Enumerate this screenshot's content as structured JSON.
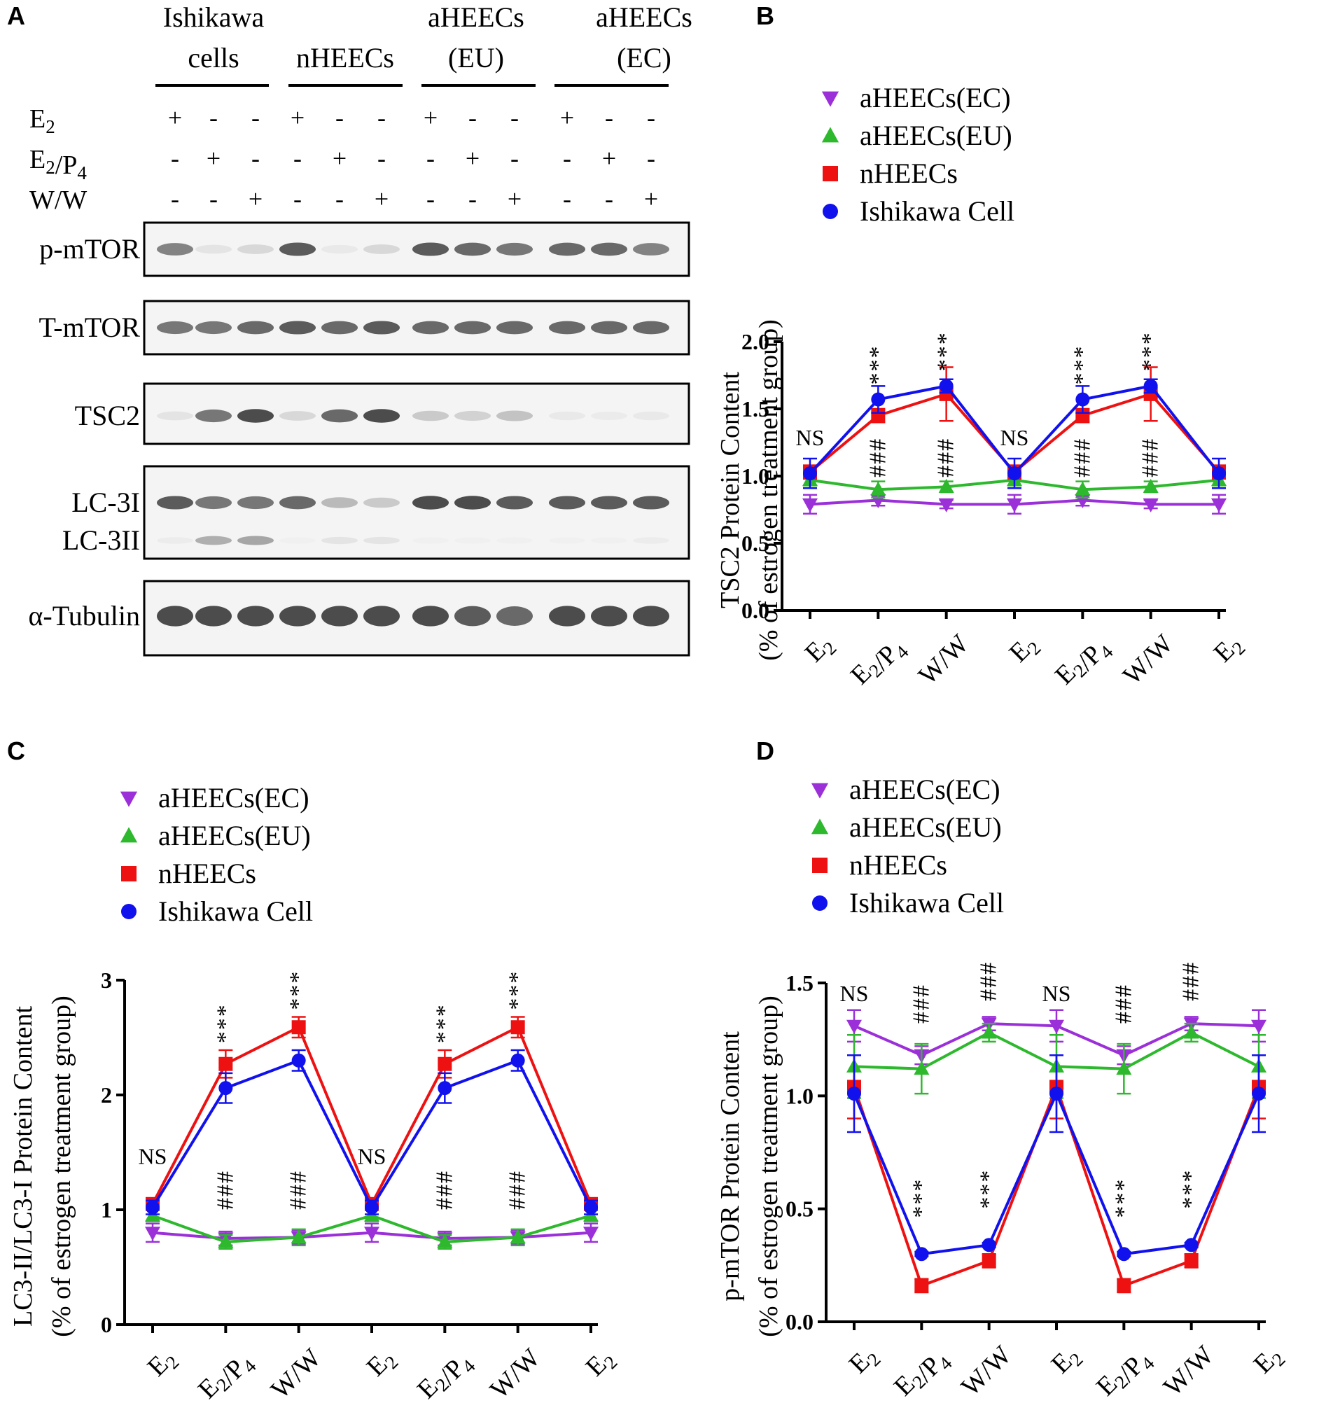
{
  "panels": {
    "a": "A",
    "b": "B",
    "c": "C",
    "d": "D"
  },
  "blot": {
    "groups": [
      {
        "line1": "Ishikawa",
        "line2": "cells"
      },
      {
        "line1": "",
        "line2": "nHEECs"
      },
      {
        "line1": "aHEECs",
        "line2": "(EU)"
      },
      {
        "line1": "aHEECs",
        "line2": "(EC)"
      }
    ],
    "treatments": [
      {
        "label": "E2",
        "signs": [
          "+",
          "-",
          "-",
          "+",
          "-",
          "-",
          "+",
          "-",
          "-",
          "+",
          "-",
          "-"
        ]
      },
      {
        "label": "E2/P4",
        "signs": [
          "-",
          "+",
          "-",
          "-",
          "+",
          "-",
          "-",
          "+",
          "-",
          "-",
          "+",
          "-"
        ]
      },
      {
        "label": "W/W",
        "signs": [
          "-",
          "-",
          "+",
          "-",
          "-",
          "+",
          "-",
          "-",
          "+",
          "-",
          "-",
          "+"
        ]
      }
    ],
    "rows": [
      {
        "label": "p-mTOR",
        "intensity": [
          0.75,
          0.2,
          0.3,
          0.9,
          0.15,
          0.3,
          0.9,
          0.85,
          0.8,
          0.85,
          0.85,
          0.75
        ]
      },
      {
        "label": "T-mTOR",
        "intensity": [
          0.8,
          0.8,
          0.85,
          0.9,
          0.85,
          0.9,
          0.85,
          0.85,
          0.85,
          0.85,
          0.85,
          0.85
        ]
      },
      {
        "label": "TSC2",
        "intensity": [
          0.2,
          0.8,
          0.95,
          0.3,
          0.85,
          0.95,
          0.4,
          0.35,
          0.45,
          0.15,
          0.12,
          0.15
        ]
      },
      {
        "label": "LC-3I",
        "intensity": [
          0.9,
          0.8,
          0.8,
          0.85,
          0.5,
          0.4,
          0.95,
          0.95,
          0.9,
          0.9,
          0.9,
          0.9
        ]
      },
      {
        "label": "LC-3II",
        "intensity": [
          0.1,
          0.55,
          0.6,
          0.05,
          0.2,
          0.2,
          0.05,
          0.05,
          0.05,
          0.05,
          0.05,
          0.1
        ]
      },
      {
        "label": "α-Tubulin",
        "intensity": [
          0.95,
          0.95,
          0.95,
          0.95,
          0.95,
          0.95,
          0.95,
          0.9,
          0.85,
          0.95,
          0.95,
          0.95
        ]
      }
    ]
  },
  "chart_data": [
    {
      "id": "B",
      "type": "line",
      "categories": [
        "E2",
        "E2/P4",
        "W/W",
        "E2",
        "E2/P4",
        "W/W",
        "E2"
      ],
      "ylabel_line1": "TSC2 Protein Content",
      "ylabel_line2": "(% of estrogen treatment  group)",
      "ylim": [
        0,
        2.0
      ],
      "yticks": [
        0.0,
        0.5,
        1.0,
        1.5,
        2.0
      ],
      "ytick_labels": [
        "0.0",
        "0.5",
        "1.0",
        "1.5",
        "2.0"
      ],
      "legend": [
        "aHEECs(EC)",
        "aHEECs(EU)",
        "nHEECs",
        "Ishikawa Cell"
      ],
      "series": [
        {
          "name": "aHEECs(EC)",
          "color": "#9b30d9",
          "marker": "triangle-down",
          "values": [
            0.79,
            0.82,
            0.79,
            0.79,
            0.82,
            0.79,
            0.79
          ],
          "errors": [
            0.07,
            0.04,
            0.03,
            0.07,
            0.04,
            0.03,
            0.07
          ]
        },
        {
          "name": "aHEECs(EU)",
          "color": "#2db82d",
          "marker": "triangle-up",
          "values": [
            0.97,
            0.9,
            0.92,
            0.97,
            0.9,
            0.92,
            0.97
          ],
          "errors": [
            0.04,
            0.06,
            0.04,
            0.04,
            0.06,
            0.04,
            0.04
          ]
        },
        {
          "name": "nHEECs",
          "color": "#ee1111",
          "marker": "square",
          "values": [
            1.03,
            1.45,
            1.61,
            1.03,
            1.45,
            1.61,
            1.03
          ],
          "errors": [
            0.05,
            0.05,
            0.2,
            0.05,
            0.05,
            0.2,
            0.05
          ]
        },
        {
          "name": "Ishikawa Cell",
          "color": "#1111ee",
          "marker": "circle",
          "values": [
            1.02,
            1.57,
            1.67,
            1.02,
            1.57,
            1.67,
            1.02
          ],
          "errors": [
            0.11,
            0.1,
            0.05,
            0.11,
            0.1,
            0.05,
            0.11
          ]
        }
      ],
      "annotations": [
        {
          "text": "NS",
          "x": 0,
          "y": 1.23
        },
        {
          "text": "***",
          "x": 1,
          "y": 1.68,
          "vertical": true
        },
        {
          "text": "***",
          "x": 2,
          "y": 1.78,
          "vertical": true
        },
        {
          "text": "NS",
          "x": 3,
          "y": 1.23
        },
        {
          "text": "***",
          "x": 4,
          "y": 1.68,
          "vertical": true
        },
        {
          "text": "***",
          "x": 5,
          "y": 1.78,
          "vertical": true
        },
        {
          "text": "###",
          "x": 1,
          "y": 0.99,
          "vertical": true
        },
        {
          "text": "###",
          "x": 2,
          "y": 0.99,
          "vertical": true
        },
        {
          "text": "###",
          "x": 4,
          "y": 0.99,
          "vertical": true
        },
        {
          "text": "###",
          "x": 5,
          "y": 0.99,
          "vertical": true
        }
      ]
    },
    {
      "id": "C",
      "type": "line",
      "categories": [
        "E2",
        "E2/P4",
        "W/W",
        "E2",
        "E2/P4",
        "W/W",
        "E2"
      ],
      "ylabel_line1": "LC3-II/LC3-I Protein Content",
      "ylabel_line2": "(% of estrogen treatment  group)",
      "ylim": [
        0,
        3
      ],
      "yticks": [
        0,
        1,
        2,
        3
      ],
      "ytick_labels": [
        "0",
        "1",
        "2",
        "3"
      ],
      "legend": [
        "aHEECs(EC)",
        "aHEECs(EU)",
        "nHEECs",
        "Ishikawa Cell"
      ],
      "series": [
        {
          "name": "aHEECs(EC)",
          "color": "#9b30d9",
          "marker": "triangle-down",
          "values": [
            0.8,
            0.75,
            0.76,
            0.8,
            0.75,
            0.76,
            0.8
          ],
          "errors": [
            0.08,
            0.06,
            0.06,
            0.08,
            0.06,
            0.06,
            0.08
          ]
        },
        {
          "name": "aHEECs(EU)",
          "color": "#2db82d",
          "marker": "triangle-up",
          "values": [
            0.95,
            0.72,
            0.76,
            0.95,
            0.72,
            0.76,
            0.95
          ],
          "errors": [
            0.05,
            0.06,
            0.07,
            0.05,
            0.06,
            0.07,
            0.05
          ]
        },
        {
          "name": "nHEECs",
          "color": "#ee1111",
          "marker": "square",
          "values": [
            1.05,
            2.27,
            2.59,
            1.05,
            2.27,
            2.59,
            1.05
          ],
          "errors": [
            0.05,
            0.12,
            0.09,
            0.05,
            0.12,
            0.09,
            0.05
          ]
        },
        {
          "name": "Ishikawa Cell",
          "color": "#1111ee",
          "marker": "circle",
          "values": [
            1.02,
            2.06,
            2.3,
            1.02,
            2.06,
            2.3,
            1.02
          ],
          "errors": [
            0.06,
            0.13,
            0.09,
            0.06,
            0.13,
            0.09,
            0.06
          ]
        }
      ],
      "annotations": [
        {
          "text": "NS",
          "x": 0,
          "y": 1.4
        },
        {
          "text": "***",
          "x": 1,
          "y": 2.45,
          "vertical": true
        },
        {
          "text": "***",
          "x": 2,
          "y": 2.74,
          "vertical": true
        },
        {
          "text": "NS",
          "x": 3,
          "y": 1.4
        },
        {
          "text": "***",
          "x": 4,
          "y": 2.45,
          "vertical": true
        },
        {
          "text": "***",
          "x": 5,
          "y": 2.74,
          "vertical": true
        },
        {
          "text": "###",
          "x": 1,
          "y": 1.0,
          "vertical": true
        },
        {
          "text": "###",
          "x": 2,
          "y": 1.0,
          "vertical": true
        },
        {
          "text": "###",
          "x": 4,
          "y": 1.0,
          "vertical": true
        },
        {
          "text": "###",
          "x": 5,
          "y": 1.0,
          "vertical": true
        }
      ]
    },
    {
      "id": "D",
      "type": "line",
      "categories": [
        "E2",
        "E2/P4",
        "W/W",
        "E2",
        "E2/P4",
        "W/W",
        "E2"
      ],
      "ylabel_line1": "p-mTOR Protein Content",
      "ylabel_line2": "(% of estrogen treatment  group)",
      "ylim": [
        0,
        1.5
      ],
      "yticks": [
        0.0,
        0.5,
        1.0,
        1.5
      ],
      "ytick_labels": [
        "0.0",
        "0.5",
        "1.0",
        "1.5"
      ],
      "legend": [
        "aHEECs(EC)",
        "aHEECs(EU)",
        "nHEECs",
        "Ishikawa Cell"
      ],
      "series": [
        {
          "name": "aHEECs(EC)",
          "color": "#9b30d9",
          "marker": "triangle-down",
          "values": [
            1.31,
            1.18,
            1.32,
            1.31,
            1.18,
            1.32,
            1.31
          ],
          "errors": [
            0.07,
            0.04,
            0.03,
            0.07,
            0.04,
            0.03,
            0.07
          ]
        },
        {
          "name": "aHEECs(EU)",
          "color": "#2db82d",
          "marker": "triangle-up",
          "values": [
            1.13,
            1.12,
            1.28,
            1.13,
            1.12,
            1.28,
            1.13
          ],
          "errors": [
            0.14,
            0.11,
            0.04,
            0.14,
            0.11,
            0.04,
            0.14
          ]
        },
        {
          "name": "nHEECs",
          "color": "#ee1111",
          "marker": "square",
          "values": [
            1.04,
            0.16,
            0.27,
            1.04,
            0.16,
            0.27,
            1.04
          ],
          "errors": [
            0.14,
            0.03,
            0.03,
            0.14,
            0.03,
            0.03,
            0.14
          ]
        },
        {
          "name": "Ishikawa Cell",
          "color": "#1111ee",
          "marker": "circle",
          "values": [
            1.01,
            0.3,
            0.34,
            1.01,
            0.3,
            0.34,
            1.01
          ],
          "errors": [
            0.17,
            0.01,
            0.01,
            0.17,
            0.01,
            0.01,
            0.17
          ]
        }
      ],
      "annotations": [
        {
          "text": "NS",
          "x": 0,
          "y": 1.42
        },
        {
          "text": "###",
          "x": 1,
          "y": 1.32,
          "vertical": true
        },
        {
          "text": "###",
          "x": 2,
          "y": 1.42,
          "vertical": true
        },
        {
          "text": "NS",
          "x": 3,
          "y": 1.42
        },
        {
          "text": "###",
          "x": 4,
          "y": 1.32,
          "vertical": true
        },
        {
          "text": "###",
          "x": 5,
          "y": 1.42,
          "vertical": true
        },
        {
          "text": "***",
          "x": 1,
          "y": 0.46,
          "vertical": true
        },
        {
          "text": "***",
          "x": 2,
          "y": 0.5,
          "vertical": true
        },
        {
          "text": "***",
          "x": 4,
          "y": 0.46,
          "vertical": true
        },
        {
          "text": "***",
          "x": 5,
          "y": 0.5,
          "vertical": true
        }
      ]
    }
  ]
}
